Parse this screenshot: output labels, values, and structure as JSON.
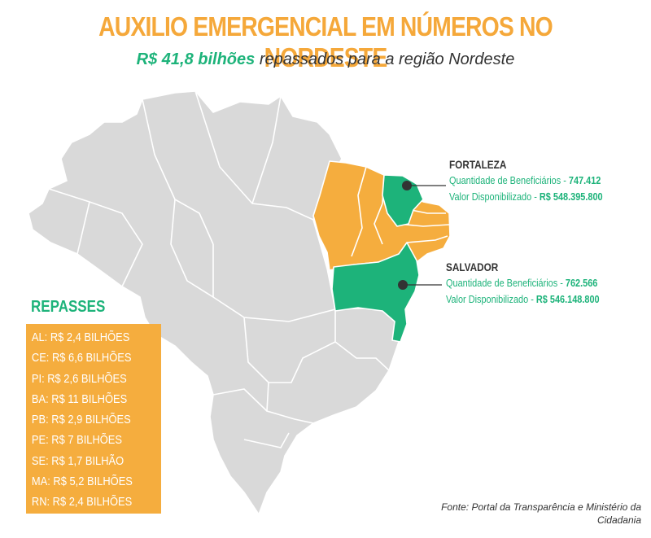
{
  "header": {
    "title": "AUXILIO EMERGENCIAL EM NÚMEROS NO NORDESTE",
    "subtitle_highlight": "R$ 41,8  bilhões",
    "subtitle_rest": " repassados para a região Nordeste"
  },
  "colors": {
    "orange": "#f5ad3e",
    "green": "#1db37a",
    "gray_state": "#d9d9d9",
    "text_dark": "#333333"
  },
  "callouts": [
    {
      "city": "FORTALEZA",
      "beneficiaries_label": "Quantidade de Beneficiários - ",
      "beneficiaries_value": "747.412",
      "value_label": "Valor Disponibilizado - ",
      "value_amount": "R$ 548.395.800"
    },
    {
      "city": "SALVADOR",
      "beneficiaries_label": "Quantidade de Beneficiários - ",
      "beneficiaries_value": "762.566",
      "value_label": "Valor Disponibilizado - ",
      "value_amount": "R$ 546.148.800"
    }
  ],
  "repasses": {
    "title": "REPASSES",
    "items": [
      "AL: R$ 2,4 BILHÕES",
      "CE: R$ 6,6 BILHÕES",
      "PI: R$ 2,6 BILHÕES",
      "BA: R$ 11 BILHÕES",
      "PB: R$ 2,9 BILHÕES",
      "PE: R$ 7 BILHÕES",
      "SE: R$ 1,7 BILHÃO",
      "MA: R$ 5,2 BILHÕES",
      "RN: R$ 2,4 BILHÕES"
    ]
  },
  "source": {
    "line1": "Fonte: Portal da Transparência e Ministério da",
    "line2": "Cidadania"
  }
}
